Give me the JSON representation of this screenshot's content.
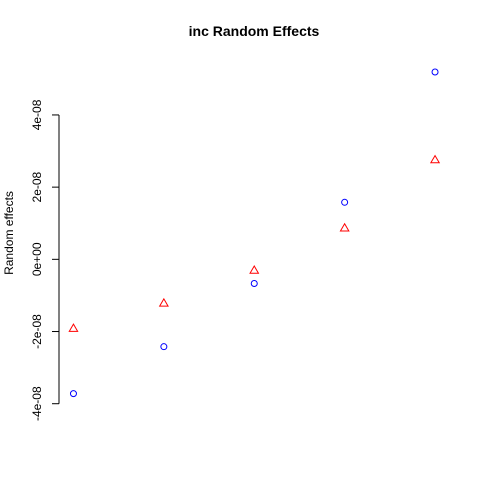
{
  "chart_data": {
    "type": "scatter",
    "title": "inc Random Effects",
    "ylabel": "Random effects",
    "x": [
      1,
      2,
      3,
      4,
      5
    ],
    "series": [
      {
        "color": "#0000ff",
        "marker": "circle",
        "values": [
          -3.72e-08,
          -2.42e-08,
          -6.7e-09,
          1.58e-08,
          5.19e-08
        ]
      },
      {
        "color": "#ff0000",
        "marker": "triangle",
        "values": [
          -1.92e-08,
          -1.22e-08,
          -3.1e-09,
          8.6e-09,
          2.75e-08
        ]
      }
    ],
    "xlim": [
      0.84,
      5.16
    ],
    "ylim": [
      -4.08e-08,
      5.55e-08
    ],
    "yticks": [
      {
        "value": -4e-08,
        "label": "-4e-08"
      },
      {
        "value": -2e-08,
        "label": "-2e-08"
      },
      {
        "value": 0,
        "label": "0e+00"
      },
      {
        "value": 2e-08,
        "label": "2e-08"
      },
      {
        "value": 4e-08,
        "label": "4e-08"
      }
    ],
    "grid": false
  }
}
